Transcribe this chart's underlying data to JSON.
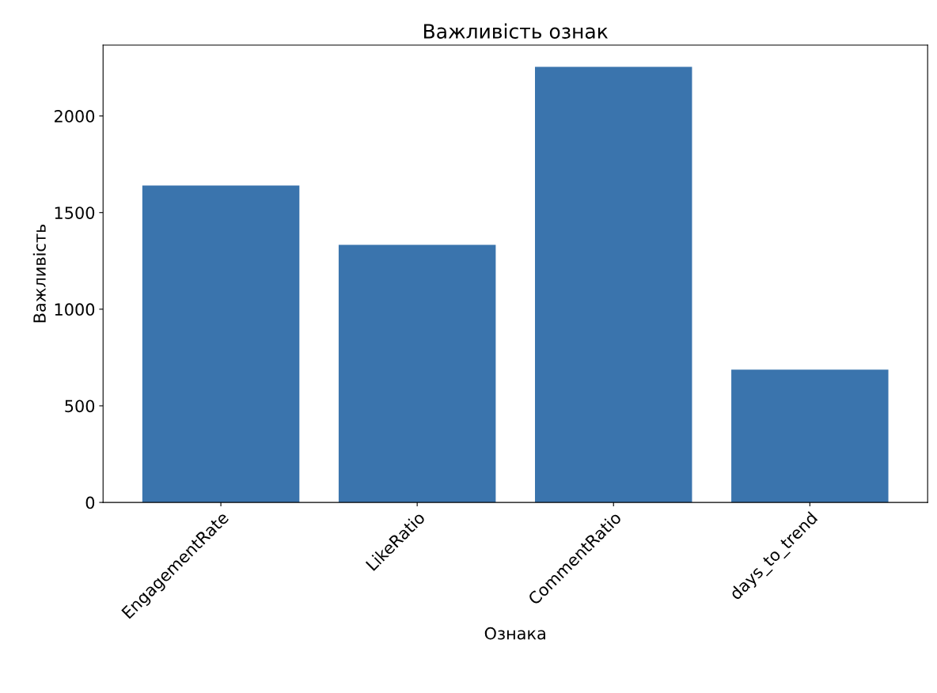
{
  "chart_data": {
    "type": "bar",
    "title": "Важливість ознак",
    "xlabel": "Ознака",
    "ylabel": "Важливість",
    "categories": [
      "EngagementRate",
      "LikeRatio",
      "CommentRatio",
      "days_to_trend"
    ],
    "values": [
      1640,
      1333,
      2254,
      687
    ],
    "color": "#3a74ad",
    "ylim": [
      0,
      2367
    ],
    "yticks": [
      0,
      500,
      1000,
      1500,
      2000
    ],
    "grid": false
  }
}
